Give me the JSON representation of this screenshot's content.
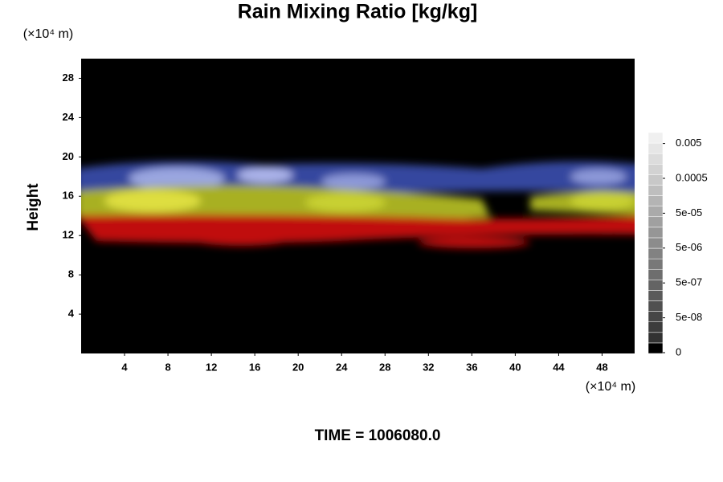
{
  "chart_data": {
    "type": "field",
    "title": "Rain Mixing Ratio [kg/kg]",
    "y_unit": "(×10⁴ m)",
    "x_unit": "(×10⁴ m)",
    "ylabel": "Height",
    "footer": "TIME = 1006080.0",
    "xlim": [
      0,
      51
    ],
    "xticks": [
      4,
      8,
      12,
      16,
      20,
      24,
      28,
      32,
      36,
      40,
      44,
      48
    ],
    "ylim": [
      0,
      30
    ],
    "yticks": [
      4,
      8,
      12,
      16,
      20,
      24,
      28
    ],
    "colorbar_ticks": [
      0,
      {
        "value": 5e-08,
        "label": "5e-08"
      },
      {
        "value": 5e-07,
        "label": "5e-07"
      },
      {
        "value": 5e-06,
        "label": "5e-06"
      },
      {
        "value": 5e-05,
        "label": "5e-05"
      },
      0.0005,
      0.005
    ]
  }
}
